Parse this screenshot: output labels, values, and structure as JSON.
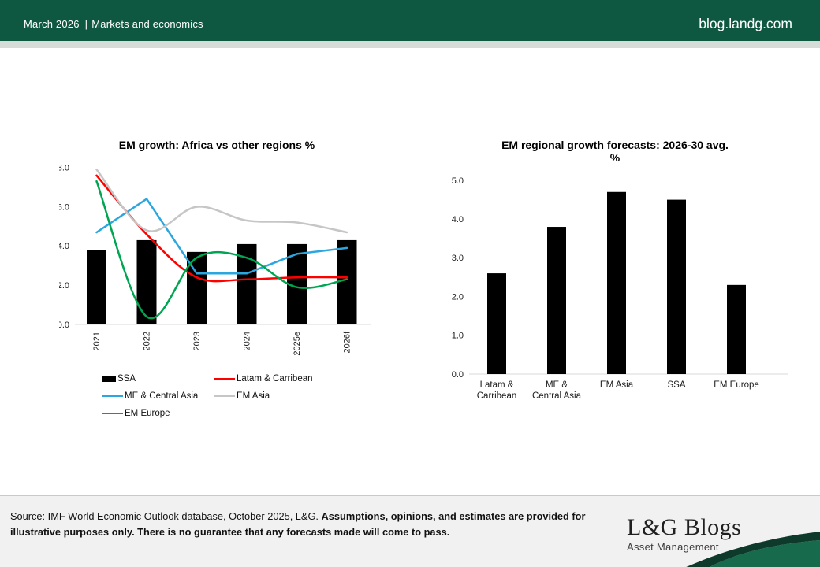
{
  "header": {
    "date": "March 2026",
    "separator": "|",
    "section": "Markets and economics",
    "site": "blog.landg.com"
  },
  "colors": {
    "header_green": "#0e5740",
    "band_gray": "#d6dcd7",
    "footer_bg": "#f1f1f1",
    "swoosh_dark": "#0d3a2b",
    "swoosh_green": "#176a4b",
    "axis_line": "#d9d9d9",
    "bar_black": "#000000",
    "line_red": "#ff0000",
    "line_blue": "#2ba6de",
    "line_gray": "#c6c6c6",
    "line_green": "#00a551"
  },
  "chart_data": [
    {
      "type": "combo-bar-line",
      "title": "EM growth: Africa vs other regions %",
      "categories": [
        "2021",
        "2022",
        "2023",
        "2024",
        "2025e",
        "2026f"
      ],
      "bar_series": {
        "name": "SSA",
        "color": "#000000",
        "values": [
          3.8,
          4.3,
          3.7,
          4.1,
          4.1,
          4.3
        ]
      },
      "line_series": [
        {
          "name": "Latam & Carribean",
          "color": "#ff0000",
          "smooth": true,
          "values": [
            7.6,
            4.6,
            2.4,
            2.3,
            2.4,
            2.4
          ]
        },
        {
          "name": "ME & Central Asia",
          "color": "#2ba6de",
          "smooth": false,
          "values": [
            4.7,
            6.4,
            2.6,
            2.6,
            3.6,
            3.9
          ]
        },
        {
          "name": "EM Asia",
          "color": "#c6c6c6",
          "smooth": true,
          "values": [
            7.9,
            4.8,
            6.0,
            5.3,
            5.2,
            4.7
          ]
        },
        {
          "name": "EM Europe",
          "color": "#00a551",
          "smooth": true,
          "values": [
            7.3,
            0.4,
            3.4,
            3.4,
            1.9,
            2.3
          ]
        }
      ],
      "ylim": [
        0,
        8
      ],
      "y_ticks": [
        "0.0",
        "2.0",
        "4.0",
        "6.0",
        "8.0"
      ],
      "x_tick_rotation": -90,
      "grid": false,
      "legend_position": "bottom"
    },
    {
      "type": "bar",
      "title": "EM regional growth forecasts: 2026-30 avg. %",
      "title_line1": "EM regional growth forecasts: 2026-30 avg.",
      "title_line2": "%",
      "categories": [
        [
          "Latam &",
          "Carribean"
        ],
        [
          "ME &",
          "Central Asia"
        ],
        [
          "EM Asia"
        ],
        [
          "SSA"
        ],
        [
          "EM Europe"
        ]
      ],
      "values": [
        2.6,
        3.8,
        4.7,
        4.5,
        2.3
      ],
      "bar_color": "#000000",
      "ylim": [
        0,
        5
      ],
      "y_ticks": [
        "0.0",
        "1.0",
        "2.0",
        "3.0",
        "4.0",
        "5.0"
      ],
      "grid": false
    }
  ],
  "footer": {
    "source_regular": "Source: IMF World Economic Outlook database, October 2025, L&G. ",
    "source_bold": "Assumptions, opinions, and estimates are provided for illustrative purposes only. There is no guarantee that any forecasts made will come to pass.",
    "logo_title": "L&G Blogs",
    "logo_subtitle": "Asset Management"
  }
}
